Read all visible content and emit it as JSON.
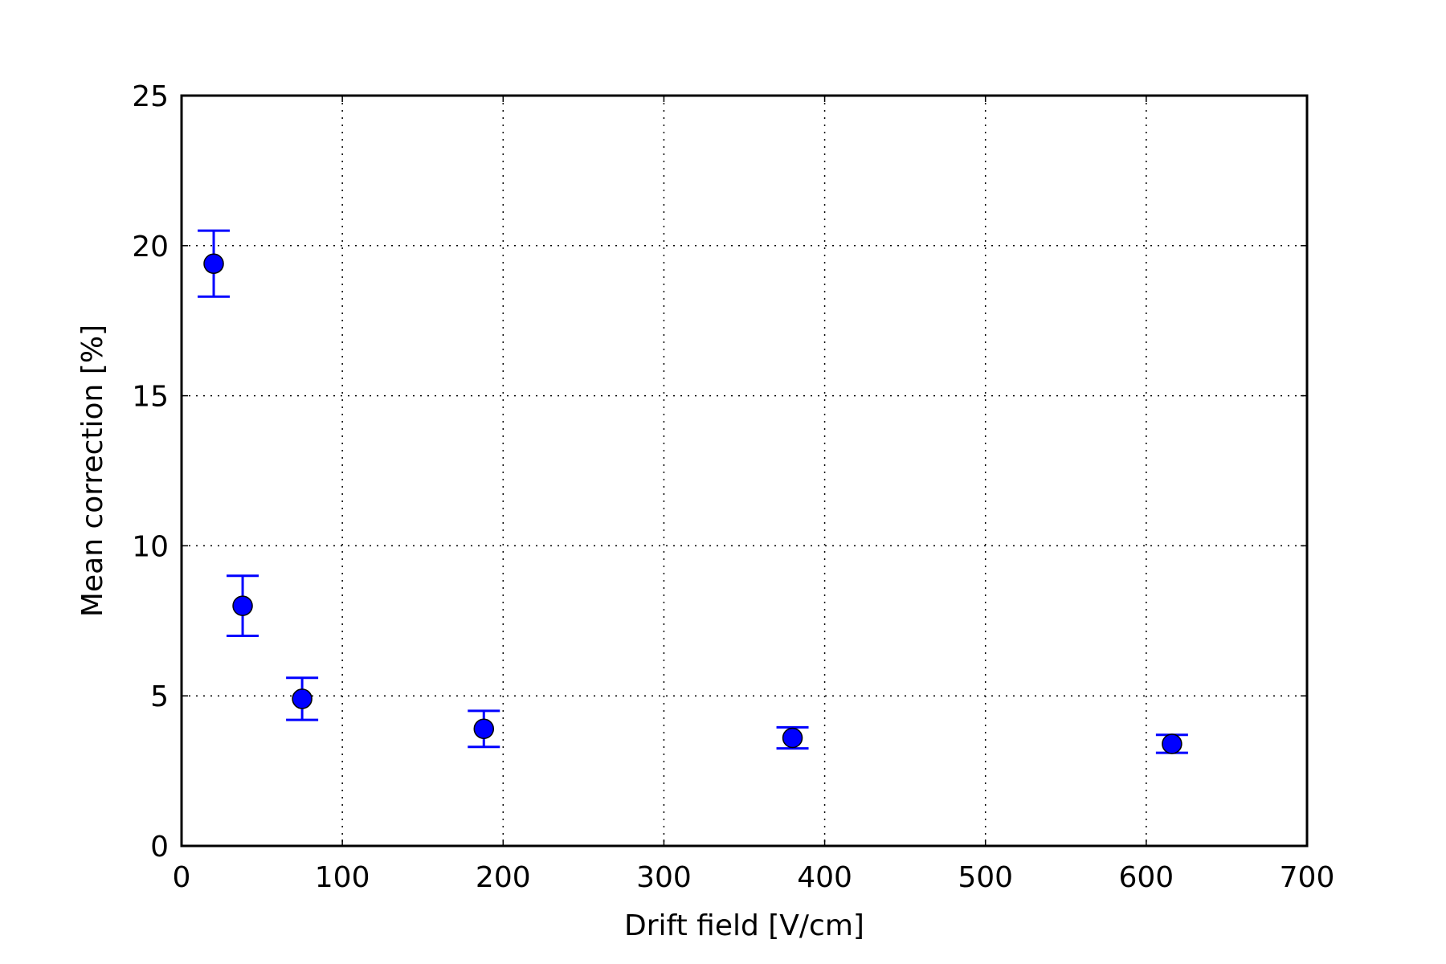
{
  "chart_data": {
    "type": "scatter",
    "title": "",
    "xlabel": "Drift field [V/cm]",
    "ylabel": "Mean correction [%]",
    "xlim": [
      0,
      700
    ],
    "ylim": [
      0,
      25
    ],
    "xticks": [
      "0",
      "100",
      "200",
      "300",
      "400",
      "500",
      "600",
      "700"
    ],
    "yticks": [
      "0",
      "5",
      "10",
      "15",
      "20",
      "25"
    ],
    "grid": true,
    "grid_style": "dotted",
    "series": [
      {
        "color": "#0000ff",
        "marker": "circle",
        "points": [
          {
            "x": 20,
            "y": 19.4,
            "yerr_low": 18.3,
            "yerr_high": 20.5
          },
          {
            "x": 38,
            "y": 8.0,
            "yerr_low": 7.0,
            "yerr_high": 9.0
          },
          {
            "x": 75,
            "y": 4.9,
            "yerr_low": 4.2,
            "yerr_high": 5.6
          },
          {
            "x": 188,
            "y": 3.9,
            "yerr_low": 3.3,
            "yerr_high": 4.5
          },
          {
            "x": 380,
            "y": 3.6,
            "yerr_low": 3.25,
            "yerr_high": 3.95
          },
          {
            "x": 616,
            "y": 3.4,
            "yerr_low": 3.1,
            "yerr_high": 3.7
          }
        ]
      }
    ]
  }
}
